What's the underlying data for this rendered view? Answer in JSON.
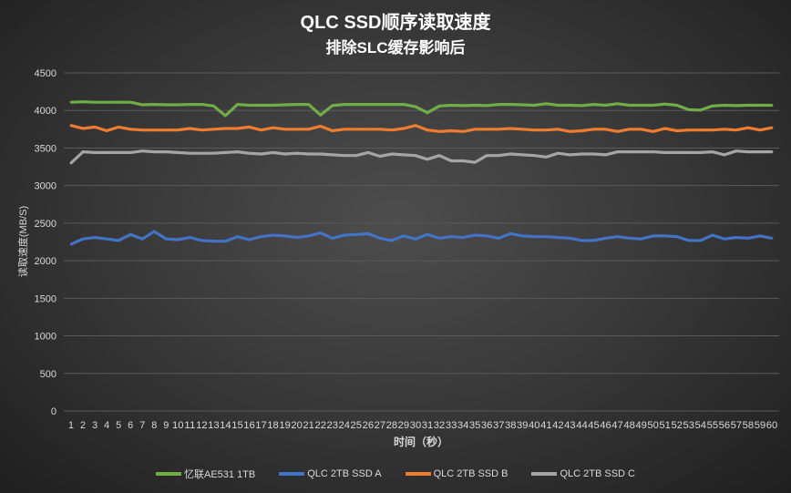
{
  "chart_data": {
    "type": "line",
    "title": "QLC SSD顺序读取速度",
    "subtitle": "排除SLC缓存影响后",
    "xlabel": "时间（秒）",
    "ylabel": "读取速度(MB/S)",
    "ylim": [
      0,
      4500
    ],
    "yticks": [
      0,
      500,
      1000,
      1500,
      2000,
      2500,
      3000,
      3500,
      4000,
      4500
    ],
    "grid": true,
    "legend": "bottom",
    "x": [
      1,
      2,
      3,
      4,
      5,
      6,
      7,
      8,
      9,
      10,
      11,
      12,
      13,
      14,
      15,
      16,
      17,
      18,
      19,
      20,
      21,
      22,
      23,
      24,
      25,
      26,
      27,
      28,
      29,
      30,
      31,
      32,
      33,
      34,
      35,
      36,
      37,
      38,
      39,
      40,
      41,
      42,
      43,
      44,
      45,
      46,
      47,
      48,
      49,
      50,
      51,
      52,
      53,
      54,
      55,
      56,
      57,
      58,
      59,
      60
    ],
    "series": [
      {
        "name": "忆联AE531 1TB",
        "color": "#70ad47",
        "values": [
          4110,
          4115,
          4110,
          4110,
          4110,
          4110,
          4075,
          4080,
          4075,
          4075,
          4080,
          4080,
          4060,
          3930,
          4080,
          4070,
          4070,
          4070,
          4075,
          4080,
          4080,
          3940,
          4065,
          4080,
          4080,
          4080,
          4080,
          4080,
          4080,
          4050,
          3970,
          4060,
          4070,
          4065,
          4070,
          4065,
          4080,
          4080,
          4075,
          4070,
          4090,
          4070,
          4070,
          4065,
          4080,
          4070,
          4090,
          4070,
          4070,
          4070,
          4085,
          4070,
          4010,
          4005,
          4060,
          4070,
          4065,
          4070,
          4070,
          4070
        ]
      },
      {
        "name": "QLC 2TB SSD A",
        "color": "#4472c4",
        "values": [
          2220,
          2290,
          2310,
          2290,
          2270,
          2350,
          2290,
          2390,
          2290,
          2280,
          2310,
          2270,
          2260,
          2260,
          2320,
          2280,
          2320,
          2340,
          2330,
          2310,
          2330,
          2370,
          2300,
          2340,
          2350,
          2360,
          2300,
          2270,
          2330,
          2290,
          2350,
          2300,
          2320,
          2310,
          2340,
          2330,
          2300,
          2360,
          2330,
          2320,
          2320,
          2310,
          2300,
          2270,
          2270,
          2300,
          2320,
          2300,
          2290,
          2330,
          2330,
          2320,
          2270,
          2270,
          2340,
          2290,
          2310,
          2300,
          2330,
          2300
        ]
      },
      {
        "name": "QLC 2TB SSD B",
        "color": "#ed7d31",
        "values": [
          3800,
          3760,
          3780,
          3730,
          3780,
          3750,
          3740,
          3740,
          3740,
          3740,
          3760,
          3740,
          3750,
          3760,
          3760,
          3780,
          3740,
          3770,
          3750,
          3750,
          3750,
          3790,
          3730,
          3750,
          3750,
          3750,
          3750,
          3740,
          3760,
          3800,
          3740,
          3720,
          3730,
          3720,
          3750,
          3750,
          3750,
          3760,
          3750,
          3740,
          3740,
          3750,
          3720,
          3730,
          3750,
          3750,
          3720,
          3750,
          3750,
          3720,
          3760,
          3730,
          3740,
          3740,
          3740,
          3750,
          3740,
          3770,
          3740,
          3770
        ]
      },
      {
        "name": "QLC 2TB SSD C",
        "color": "#a5a5a5",
        "values": [
          3300,
          3450,
          3440,
          3440,
          3440,
          3440,
          3460,
          3450,
          3450,
          3440,
          3430,
          3430,
          3430,
          3440,
          3450,
          3430,
          3420,
          3440,
          3420,
          3430,
          3420,
          3420,
          3410,
          3400,
          3400,
          3440,
          3390,
          3420,
          3410,
          3400,
          3350,
          3400,
          3330,
          3330,
          3310,
          3400,
          3400,
          3420,
          3410,
          3400,
          3380,
          3430,
          3410,
          3420,
          3420,
          3410,
          3450,
          3450,
          3450,
          3450,
          3440,
          3440,
          3440,
          3440,
          3450,
          3410,
          3460,
          3450,
          3450,
          3450
        ]
      }
    ]
  }
}
